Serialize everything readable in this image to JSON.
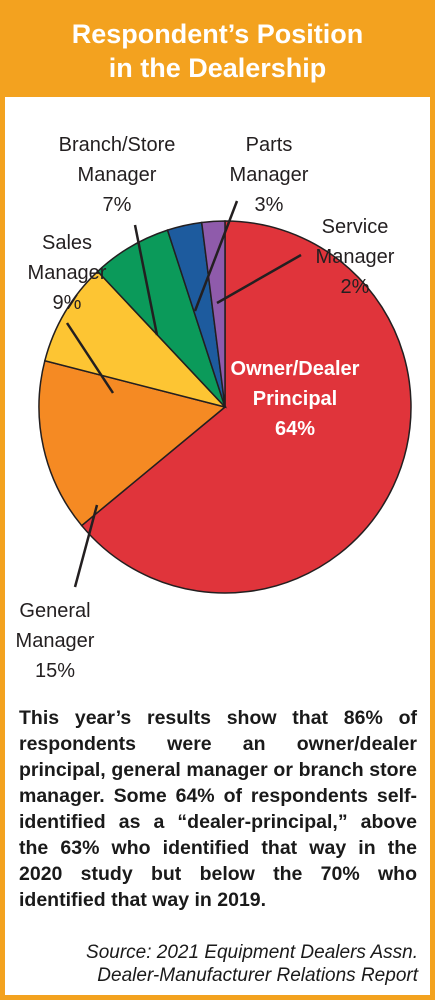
{
  "header": {
    "title_line1": "Respondent’s Position",
    "title_line2": "in the Dealership"
  },
  "colors": {
    "accent": "#f3a21f",
    "owner": "#e0343b",
    "general": "#f58a23",
    "sales": "#fdc533",
    "branch": "#0b9a5a",
    "parts": "#1d5b9e",
    "service": "#8f5bab"
  },
  "chart_data": {
    "type": "pie",
    "title": "Respondent’s Position in the Dealership",
    "slices": [
      {
        "label_lines": [
          "Owner/Dealer",
          "Principal"
        ],
        "value": 64,
        "value_label": "64%",
        "color": "#e0343b"
      },
      {
        "label_lines": [
          "General",
          "Manager"
        ],
        "value": 15,
        "value_label": "15%",
        "color": "#f58a23"
      },
      {
        "label_lines": [
          "Sales",
          "Manager"
        ],
        "value": 9,
        "value_label": "9%",
        "color": "#fdc533"
      },
      {
        "label_lines": [
          "Branch/Store",
          "Manager"
        ],
        "value": 7,
        "value_label": "7%",
        "color": "#0b9a5a"
      },
      {
        "label_lines": [
          "Parts",
          "Manager"
        ],
        "value": 3,
        "value_label": "3%",
        "color": "#1d5b9e"
      },
      {
        "label_lines": [
          "Service",
          "Manager"
        ],
        "value": 2,
        "value_label": "2%",
        "color": "#8f5bab"
      }
    ]
  },
  "body": {
    "text": "This year’s results show that 86% of respondents were an owner/dealer principal, general manager or branch store manager. Some 64% of respondents self-identified as a “dealer-principal,” above the 63% who identified that way in the 2020 study but below the 70% who identified that way in 2019."
  },
  "source": {
    "line1": "Source: 2021 Equipment Dealers Assn.",
    "line2": "Dealer-Manufacturer Relations Report"
  }
}
